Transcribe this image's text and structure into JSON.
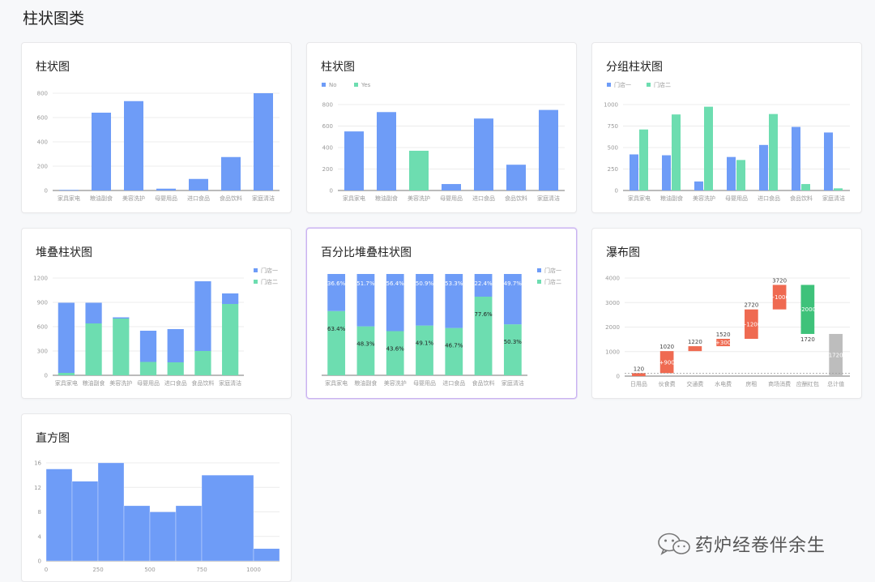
{
  "page": {
    "title": "柱状图类"
  },
  "colors": {
    "blue": "#6e9cf7",
    "green": "#6dddb0",
    "red": "#ef6a51",
    "green_dark": "#3ec27a",
    "gray": "#bdbdbd",
    "grid": "#ececec",
    "axis": "#777",
    "text": "#999"
  },
  "watermark": {
    "text": "药炉经卷伴余生",
    "icon": "wechat-icon"
  },
  "cards": [
    {
      "title": "柱状图"
    },
    {
      "title": "柱状图"
    },
    {
      "title": "分组柱状图"
    },
    {
      "title": "堆叠柱状图"
    },
    {
      "title": "百分比堆叠柱状图"
    },
    {
      "title": "瀑布图"
    },
    {
      "title": "直方图"
    }
  ],
  "chart_data": [
    {
      "type": "bar",
      "categories": [
        "家具家电",
        "粮油副食",
        "美容洗护",
        "母婴用品",
        "进口食品",
        "食品饮料",
        "家庭清洁"
      ],
      "values": [
        5,
        640,
        735,
        15,
        95,
        275,
        800
      ],
      "yticks": [
        "0",
        "200",
        "400",
        "600",
        "800"
      ],
      "ylim": [
        0,
        800
      ]
    },
    {
      "type": "bar",
      "categories": [
        "家具家电",
        "粮油副食",
        "美容洗护",
        "母婴用品",
        "进口食品",
        "食品饮料",
        "家庭清洁"
      ],
      "values": [
        550,
        730,
        370,
        60,
        670,
        240,
        750
      ],
      "flags": [
        "No",
        "No",
        "Yes",
        "No",
        "No",
        "No",
        "No"
      ],
      "legend": [
        "No",
        "Yes"
      ],
      "yticks": [
        "0",
        "200",
        "400",
        "600",
        "800"
      ],
      "ylim": [
        0,
        800
      ]
    },
    {
      "type": "bar",
      "categories": [
        "家具家电",
        "粮油副食",
        "美容洗护",
        "母婴用品",
        "进口食品",
        "食品饮料",
        "家庭清洁"
      ],
      "series": [
        {
          "name": "门店一",
          "values": [
            420,
            410,
            105,
            390,
            530,
            740,
            675
          ]
        },
        {
          "name": "门店二",
          "values": [
            710,
            885,
            975,
            355,
            890,
            75,
            25
          ]
        }
      ],
      "yticks": [
        "0",
        "250",
        "500",
        "750",
        "1000"
      ],
      "ylim": [
        0,
        1000
      ]
    },
    {
      "type": "bar",
      "stacked": true,
      "categories": [
        "家具家电",
        "粮油副食",
        "美容洗护",
        "母婴用品",
        "进口食品",
        "食品饮料",
        "家庭清洁"
      ],
      "series": [
        {
          "name": "门店二",
          "values": [
            30,
            640,
            700,
            165,
            160,
            300,
            880
          ]
        },
        {
          "name": "门店一",
          "values": [
            865,
            255,
            15,
            385,
            410,
            860,
            130
          ]
        }
      ],
      "legend": [
        "门店一",
        "门店二"
      ],
      "yticks": [
        "0",
        "300",
        "600",
        "900",
        "1200"
      ],
      "ylim": [
        0,
        1200
      ]
    },
    {
      "type": "bar",
      "stacked": true,
      "percent": true,
      "categories": [
        "家具家电",
        "粮油副食",
        "美容洗护",
        "母婴用品",
        "进口食品",
        "食品饮料",
        "家庭清洁"
      ],
      "series": [
        {
          "name": "门店二",
          "values": [
            63.4,
            48.3,
            43.6,
            49.1,
            46.7,
            77.6,
            50.3
          ],
          "labels": [
            "63.4%",
            "48.3%",
            "43.6%",
            "49.1%",
            "46.7%",
            "77.6%",
            "50.3%"
          ]
        },
        {
          "name": "门店一",
          "values": [
            36.6,
            51.7,
            56.4,
            50.9,
            53.3,
            22.4,
            49.7
          ],
          "labels": [
            "36.6%",
            "51.7%",
            "56.4%",
            "50.9%",
            "53.3%",
            "22.4%",
            "49.7%"
          ]
        }
      ],
      "legend": [
        "门店一",
        "门店二"
      ]
    },
    {
      "type": "bar",
      "waterfall": true,
      "categories": [
        "日用品",
        "伙食费",
        "交通费",
        "水电费",
        "房租",
        "商场消费",
        "应酬红包",
        "总计值"
      ],
      "starts": [
        0,
        120,
        1020,
        1220,
        1520,
        2720,
        3720,
        0
      ],
      "ends": [
        120,
        1020,
        1220,
        1520,
        2720,
        3720,
        1720,
        1720
      ],
      "kinds": [
        "up",
        "up",
        "up",
        "up",
        "up",
        "up",
        "down",
        "total"
      ],
      "top_labels": [
        "120",
        "1020",
        "1220",
        "1520",
        "2720",
        "3720",
        "1720",
        ""
      ],
      "delta_labels": [
        "",
        "+900",
        "",
        "+300",
        "+1200",
        "+1000",
        "-2000",
        "1720"
      ],
      "yticks": [
        "0",
        "1000",
        "2000",
        "3000",
        "4000"
      ],
      "ylim": [
        0,
        4000
      ]
    },
    {
      "type": "bar",
      "histogram": true,
      "bin_edges": [
        0,
        125,
        250,
        375,
        500,
        625,
        750,
        1000,
        1125
      ],
      "values": [
        15,
        13,
        16,
        9,
        8,
        9,
        14,
        2
      ],
      "xticks": [
        "0",
        "250",
        "500",
        "750",
        "1000"
      ],
      "yticks": [
        "0",
        "4",
        "8",
        "12",
        "16"
      ],
      "ylim": [
        0,
        16
      ]
    }
  ]
}
